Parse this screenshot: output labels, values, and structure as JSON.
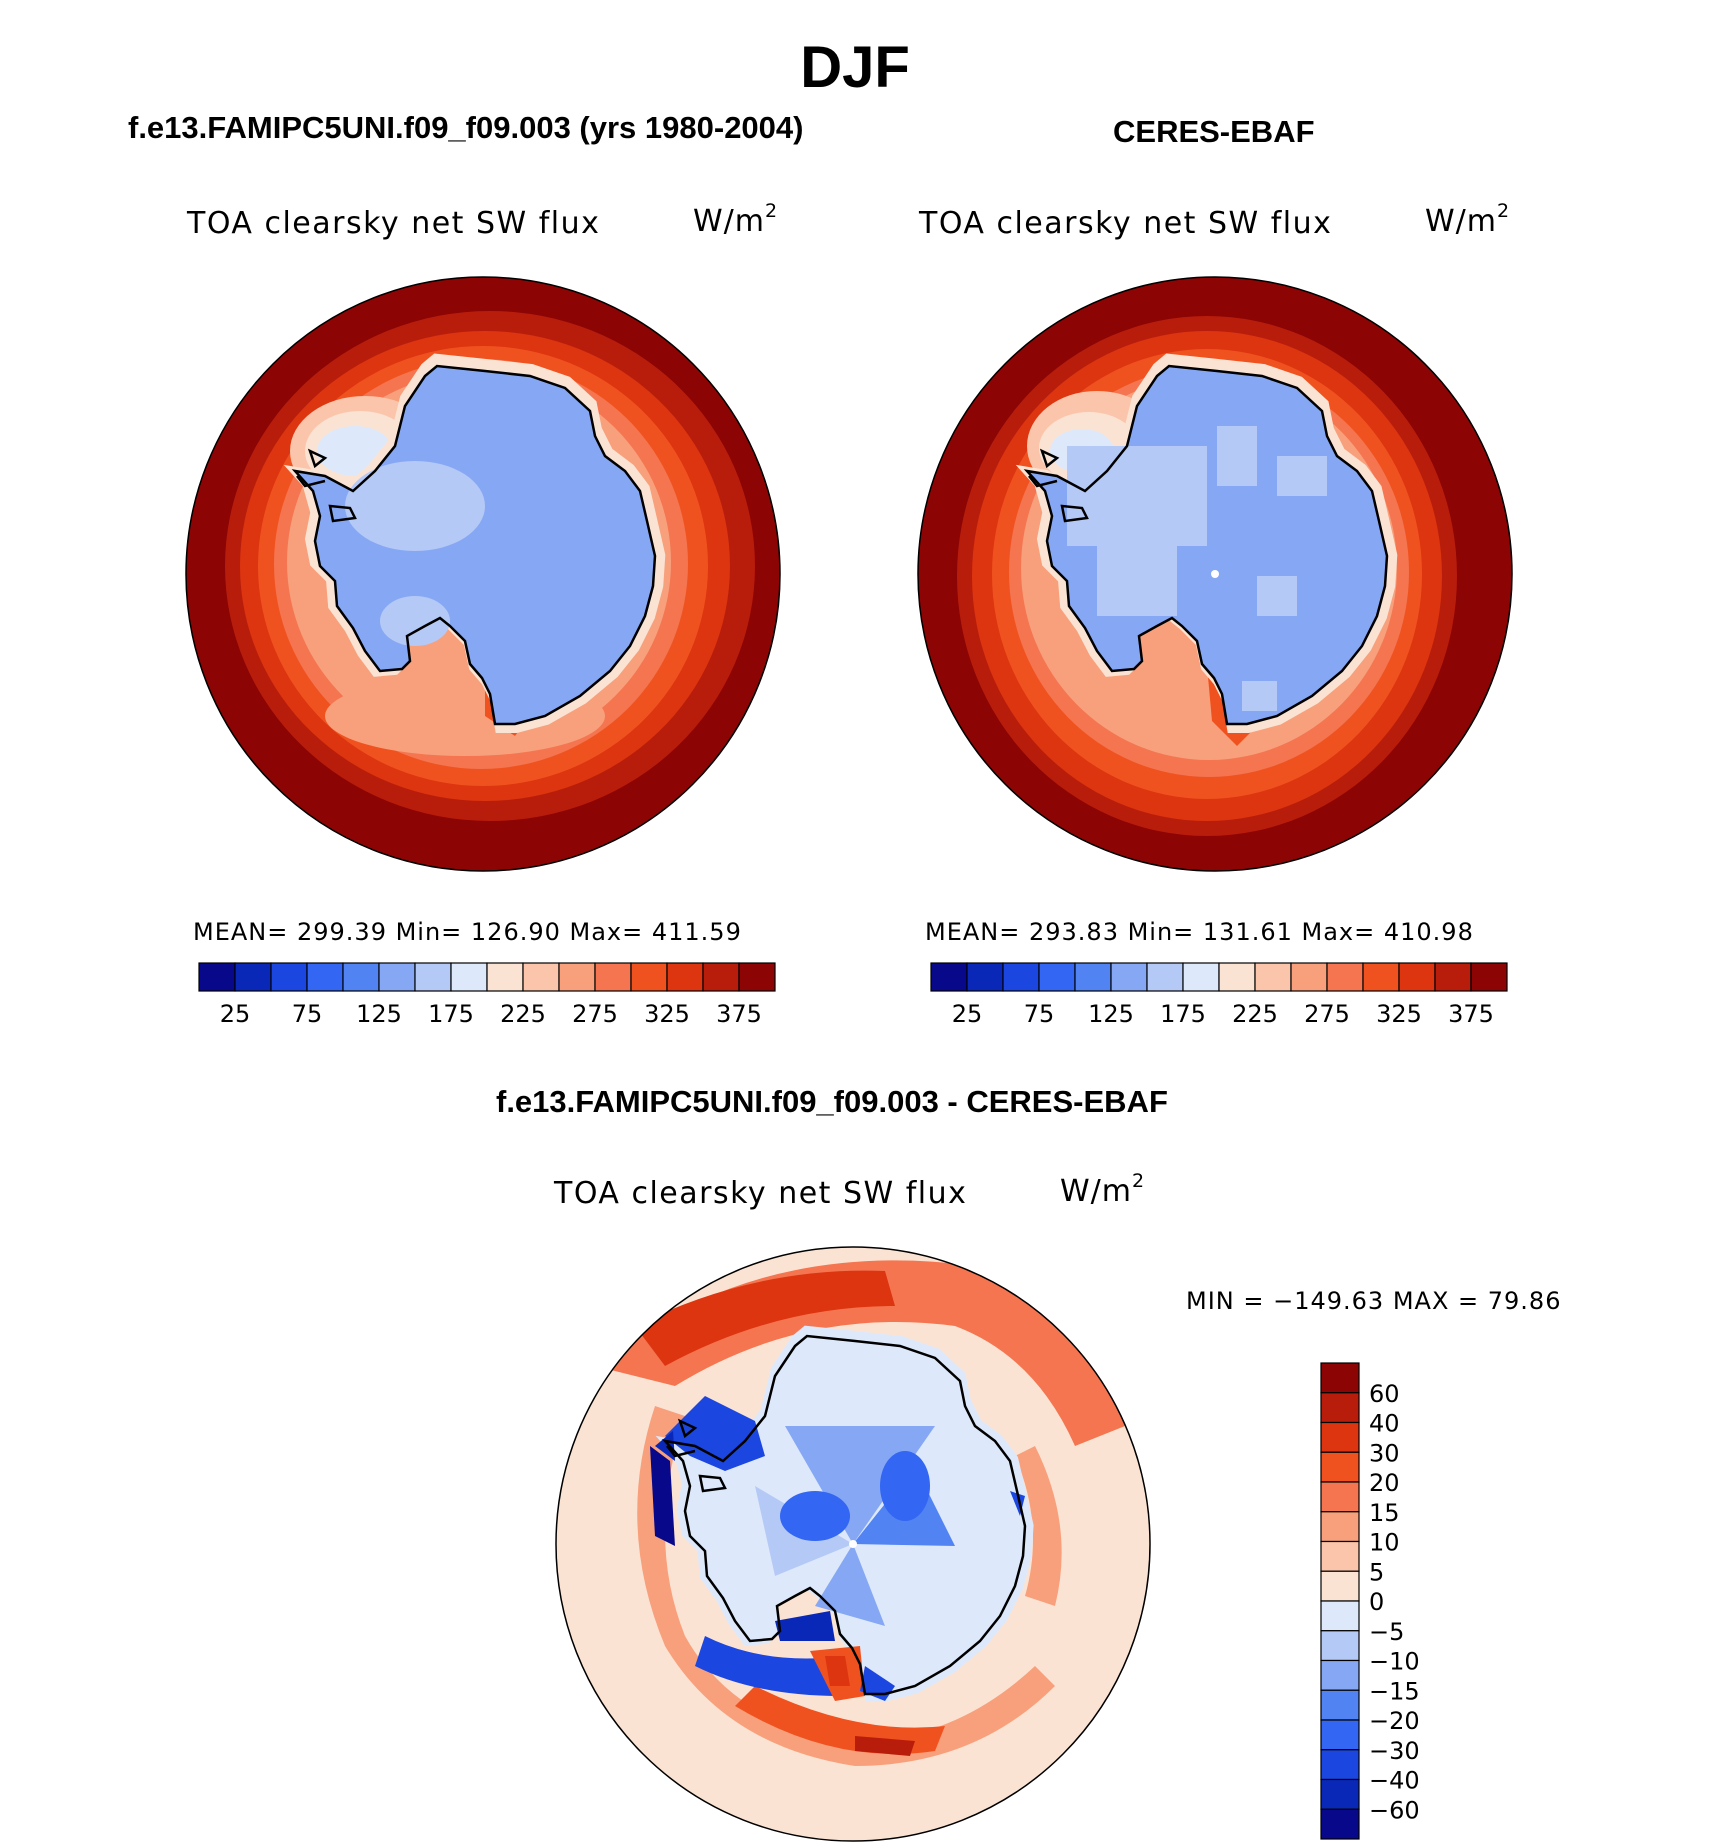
{
  "title": "DJF",
  "panels": [
    {
      "title": "f.e13.FAMIPC5UNI.f09_f09.003 (yrs 1980-2004)",
      "variable": "TOA clearsky net SW flux",
      "units_base": "W/m",
      "units_exp": "2",
      "stats": "MEAN= 299.39   Min= 126.90   Max= 411.59"
    },
    {
      "title": "CERES-EBAF",
      "variable": "TOA clearsky net SW flux",
      "units_base": "W/m",
      "units_exp": "2",
      "stats": "MEAN= 293.83   Min= 131.61   Max= 410.98"
    },
    {
      "title": "f.e13.FAMIPC5UNI.f09_f09.003 - CERES-EBAF",
      "variable": "TOA clearsky net SW flux",
      "units_base": "W/m",
      "units_exp": "2",
      "stats": "MIN = −149.63 MAX =   79.86"
    }
  ],
  "colorbar_top": {
    "colors": [
      "#08088a",
      "#0a28b8",
      "#1c46e0",
      "#3366f2",
      "#5283f2",
      "#86a8f4",
      "#b5c9f6",
      "#dde9fb",
      "#fbe3d3",
      "#fbc5ab",
      "#f8a07c",
      "#f47550",
      "#f0521f",
      "#dc3510",
      "#b81d0c",
      "#8c0404"
    ],
    "tick_labels": [
      "25",
      "75",
      "125",
      "175",
      "225",
      "275",
      "325",
      "375"
    ]
  },
  "colorbar_diff": {
    "colors": [
      "#8c0404",
      "#b81d0c",
      "#dc3510",
      "#f0521f",
      "#f47550",
      "#f8a07c",
      "#fbc5ab",
      "#fbe3d3",
      "#dde9fb",
      "#b5c9f6",
      "#86a8f4",
      "#5283f2",
      "#3366f2",
      "#1c46e0",
      "#0a28b8",
      "#08088a"
    ],
    "tick_labels": [
      "60",
      "40",
      "30",
      "20",
      "15",
      "10",
      "5",
      "0",
      "−5",
      "−10",
      "−15",
      "−20",
      "−30",
      "−40",
      "−60"
    ]
  }
}
